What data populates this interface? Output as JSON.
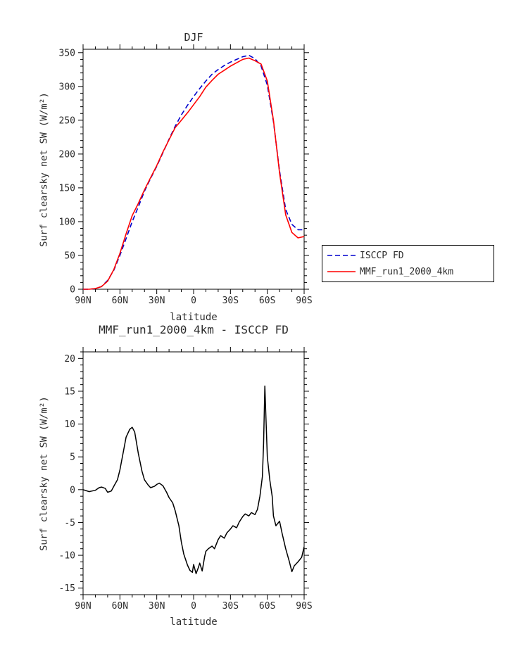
{
  "page": {
    "background": "#ffffff",
    "axis_color": "#000000",
    "text_color": "#2b2b2b"
  },
  "chart_data": [
    {
      "type": "line",
      "title": "DJF",
      "xlabel": "latitude",
      "ylabel": "Surf clearsky net SW (W/m²)",
      "xlim": [
        90,
        -90
      ],
      "ylim": [
        0,
        355
      ],
      "x_minor": 10,
      "y_minor": 10,
      "grid": false,
      "legend_position": "outside-right",
      "xticks": [
        {
          "v": 90,
          "l": "90N"
        },
        {
          "v": 60,
          "l": "60N"
        },
        {
          "v": 30,
          "l": "30N"
        },
        {
          "v": 0,
          "l": "0"
        },
        {
          "v": -30,
          "l": "30S"
        },
        {
          "v": -60,
          "l": "60S"
        },
        {
          "v": -90,
          "l": "90S"
        }
      ],
      "yticks": [
        0,
        50,
        100,
        150,
        200,
        250,
        300,
        350
      ],
      "series": [
        {
          "id": "isccp-fd",
          "name": "ISCCP FD",
          "color": "#0000cd",
          "dash": "7,4",
          "width": 1.6,
          "x": [
            90,
            85,
            80,
            75,
            70,
            65,
            60,
            55,
            50,
            45,
            40,
            35,
            30,
            25,
            20,
            15,
            10,
            5,
            0,
            -5,
            -10,
            -15,
            -20,
            -25,
            -30,
            -35,
            -40,
            -45,
            -50,
            -55,
            -60,
            -65,
            -70,
            -75,
            -80,
            -85,
            -90
          ],
          "y": [
            0,
            0,
            1,
            4,
            13,
            28,
            50,
            75,
            100,
            122,
            145,
            164,
            182,
            202,
            222,
            241,
            258,
            272,
            285,
            297,
            308,
            318,
            325,
            331,
            336,
            340,
            344,
            346,
            341,
            330,
            302,
            248,
            175,
            118,
            96,
            88,
            88
          ]
        },
        {
          "id": "mmf-run1",
          "name": "MMF_run1_2000_4km",
          "color": "#ff0000",
          "dash": null,
          "width": 1.6,
          "x": [
            90,
            85,
            80,
            75,
            70,
            65,
            60,
            55,
            50,
            45,
            40,
            35,
            30,
            25,
            20,
            15,
            10,
            5,
            0,
            -5,
            -10,
            -15,
            -20,
            -25,
            -30,
            -35,
            -40,
            -45,
            -50,
            -55,
            -60,
            -65,
            -70,
            -75,
            -80,
            -85,
            -90
          ],
          "y": [
            0,
            0,
            1,
            4,
            12,
            29,
            53,
            82,
            109,
            127,
            147,
            165,
            183,
            203,
            221,
            239,
            250,
            261,
            273,
            285,
            299,
            309,
            318,
            324,
            330,
            335,
            340,
            342,
            338,
            333,
            308,
            250,
            172,
            110,
            84,
            76,
            78
          ]
        }
      ]
    },
    {
      "type": "line",
      "title": "MMF_run1_2000_4km - ISCCP FD",
      "xlabel": "latitude",
      "ylabel": "Surf clearsky net SW (W/m²)",
      "xlim": [
        90,
        -90
      ],
      "ylim": [
        -16,
        21
      ],
      "x_minor": 10,
      "y_minor": 1,
      "grid": false,
      "xticks": [
        {
          "v": 90,
          "l": "90N"
        },
        {
          "v": 60,
          "l": "60N"
        },
        {
          "v": 30,
          "l": "30N"
        },
        {
          "v": 0,
          "l": "0"
        },
        {
          "v": -30,
          "l": "30S"
        },
        {
          "v": -60,
          "l": "60S"
        },
        {
          "v": -90,
          "l": "90S"
        }
      ],
      "yticks": [
        -15,
        -10,
        -5,
        0,
        5,
        10,
        15,
        20
      ],
      "series": [
        {
          "id": "difference",
          "name": "MMF_run1_2000_4km - ISCCP FD",
          "color": "#000000",
          "dash": null,
          "width": 1.5,
          "x": [
            90,
            85,
            80,
            77,
            75,
            72,
            70,
            67,
            65,
            62,
            60,
            57,
            55,
            52,
            50,
            48,
            45,
            42,
            40,
            37,
            35,
            32,
            30,
            28,
            25,
            22,
            20,
            17,
            15,
            12,
            10,
            8,
            5,
            3,
            1,
            0,
            -2,
            -4,
            -5,
            -7,
            -9,
            -10,
            -12,
            -15,
            -17,
            -20,
            -22,
            -25,
            -27,
            -30,
            -32,
            -35,
            -37,
            -40,
            -42,
            -45,
            -47,
            -50,
            -52,
            -54,
            -56,
            -57,
            -58,
            -60,
            -62,
            -64,
            -65,
            -67,
            -70,
            -72,
            -75,
            -78,
            -80,
            -82,
            -85,
            -88,
            -90
          ],
          "y": [
            0,
            -0.3,
            -0.1,
            0.3,
            0.4,
            0.2,
            -0.4,
            -0.2,
            0.5,
            1.5,
            3,
            6,
            8,
            9.2,
            9.5,
            8.8,
            5.5,
            2.8,
            1.5,
            0.7,
            0.3,
            0.5,
            0.8,
            1,
            0.6,
            -0.4,
            -1.2,
            -2,
            -3.2,
            -5.5,
            -8,
            -9.8,
            -11.5,
            -12.3,
            -12.6,
            -11.4,
            -12.8,
            -11.8,
            -11.2,
            -12.4,
            -10.2,
            -9.4,
            -9,
            -8.6,
            -9,
            -7.6,
            -7,
            -7.4,
            -6.6,
            -6,
            -5.5,
            -5.8,
            -5,
            -4.1,
            -3.7,
            -4,
            -3.5,
            -3.8,
            -3,
            -1,
            2,
            7,
            15.8,
            5,
            1.5,
            -1,
            -4,
            -5.5,
            -4.8,
            -6.6,
            -9,
            -11,
            -12.5,
            -11.6,
            -11,
            -10.3,
            -8.7
          ]
        }
      ]
    }
  ]
}
